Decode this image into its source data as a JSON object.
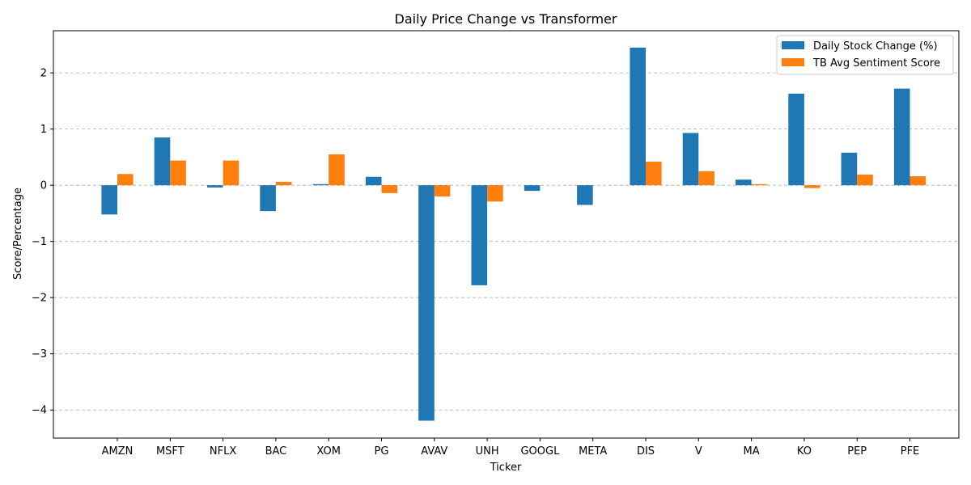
{
  "chart_data": {
    "type": "bar",
    "title": "Daily Price Change vs Transformer",
    "xlabel": "Ticker",
    "ylabel": "Score/Percentage",
    "categories": [
      "AMZN",
      "MSFT",
      "NFLX",
      "BAC",
      "XOM",
      "PG",
      "AVAV",
      "UNH",
      "GOOGL",
      "META",
      "DIS",
      "V",
      "MA",
      "KO",
      "PEP",
      "PFE"
    ],
    "series": [
      {
        "name": "Daily Stock Change (%)",
        "color": "#1f77b4",
        "values": [
          -0.52,
          0.85,
          -0.04,
          -0.46,
          0.02,
          0.15,
          -4.19,
          -1.78,
          -0.1,
          -0.35,
          2.45,
          0.93,
          0.1,
          1.63,
          0.58,
          1.72
        ]
      },
      {
        "name": "TB Avg Sentiment Score",
        "color": "#ff7f0e",
        "values": [
          0.2,
          0.44,
          0.44,
          0.06,
          0.55,
          -0.14,
          -0.2,
          -0.29,
          0.0,
          0.0,
          0.42,
          0.25,
          0.02,
          -0.05,
          0.19,
          0.16
        ]
      }
    ],
    "ylim": [
      -4.5,
      2.75
    ],
    "yticks": [
      -4,
      -3,
      -2,
      -1,
      0,
      1,
      2
    ],
    "ytick_labels": [
      "−4",
      "−3",
      "−2",
      "−1",
      "0",
      "1",
      "2"
    ],
    "grid": "y-dashed",
    "legend_position": "top-right"
  }
}
